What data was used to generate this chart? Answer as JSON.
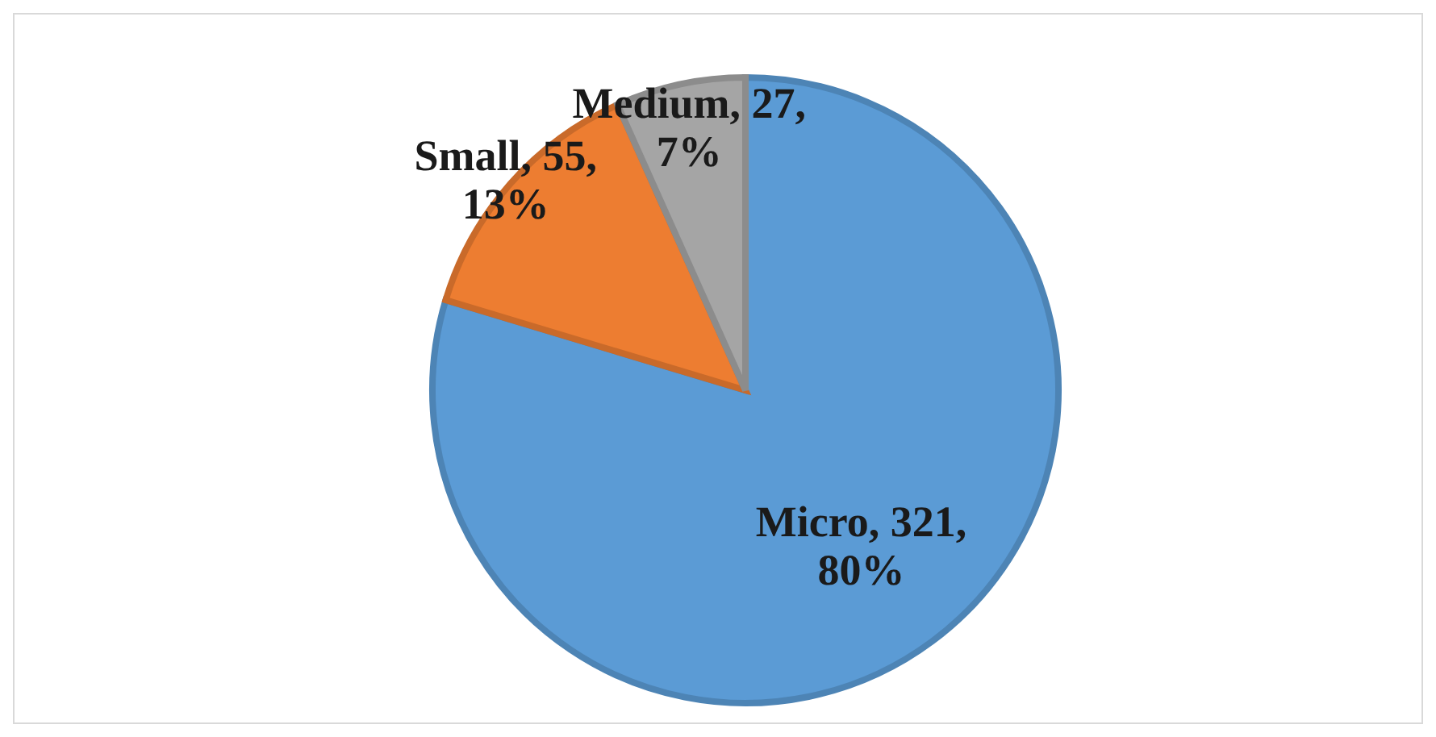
{
  "chart_data": {
    "type": "pie",
    "categories": [
      "Micro",
      "Small",
      "Medium"
    ],
    "values": [
      321,
      55,
      27
    ],
    "colors": [
      "#5b9bd5",
      "#ed7d31",
      "#a5a5a5"
    ],
    "value_labels": [
      "321, 80%",
      "55, 13%",
      "27, 7%"
    ],
    "legend": false
  }
}
